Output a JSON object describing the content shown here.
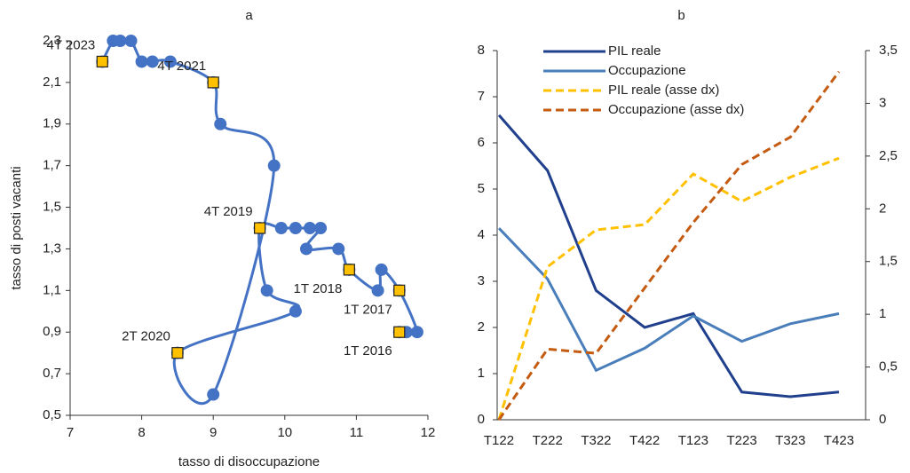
{
  "chart_data": [
    {
      "type": "scatter",
      "title": "a",
      "xlabel": "tasso di disoccupazione",
      "ylabel": "tasso di posti vacanti",
      "color": "#4472c4",
      "marker_color": "#ffc000",
      "connected": true,
      "x": [
        11.6,
        11.7,
        11.85,
        11.6,
        11.35,
        11.3,
        10.9,
        10.75,
        10.3,
        10.5,
        10.35,
        10.15,
        9.95,
        9.65,
        9.75,
        10.15,
        8.5,
        9.0,
        9.85,
        9.1,
        9.0,
        8.4,
        8.15,
        8.0,
        7.85,
        7.7,
        7.6,
        7.45
      ],
      "y": [
        0.9,
        0.9,
        0.9,
        1.1,
        1.2,
        1.1,
        1.2,
        1.3,
        1.3,
        1.4,
        1.4,
        1.4,
        1.4,
        1.4,
        1.1,
        1.0,
        0.8,
        0.6,
        1.7,
        1.9,
        2.1,
        2.2,
        2.2,
        2.2,
        2.3,
        2.3,
        2.3,
        2.2
      ],
      "annotations": [
        {
          "text": "1T 2016",
          "x": 11.6,
          "y": 0.9
        },
        {
          "text": "1T 2017",
          "x": 11.6,
          "y": 1.1
        },
        {
          "text": "1T 2018",
          "x": 10.9,
          "y": 1.2
        },
        {
          "text": "4T 2019",
          "x": 9.65,
          "y": 1.4
        },
        {
          "text": "2T 2020",
          "x": 8.5,
          "y": 0.8
        },
        {
          "text": "4T 2021",
          "x": 9.0,
          "y": 2.1
        },
        {
          "text": "4T 2023",
          "x": 7.45,
          "y": 2.2
        }
      ],
      "xlim": [
        7,
        12
      ],
      "xticks": [
        7,
        8,
        9,
        10,
        11,
        12
      ],
      "ylim": [
        0.5,
        2.3
      ],
      "yticks": [
        {
          "value": 0.5,
          "label": "0,5"
        },
        {
          "value": 0.7,
          "label": "0,7"
        },
        {
          "value": 0.9,
          "label": "0,9"
        },
        {
          "value": 1.1,
          "label": "1,1"
        },
        {
          "value": 1.3,
          "label": "1,3"
        },
        {
          "value": 1.5,
          "label": "1,5"
        },
        {
          "value": 1.7,
          "label": "1,7"
        },
        {
          "value": 1.9,
          "label": "1,9"
        },
        {
          "value": 2.1,
          "label": "2,1"
        },
        {
          "value": 2.3,
          "label": "2,3"
        }
      ]
    },
    {
      "type": "line",
      "title": "b",
      "legend": "upper left",
      "categories": [
        "T122",
        "T222",
        "T322",
        "T422",
        "T123",
        "T223",
        "T323",
        "T423"
      ],
      "series": [
        {
          "name": "PIL reale",
          "color": "#203f8c",
          "dashed": false,
          "values": [
            6.6,
            5.4,
            2.8,
            2.0,
            2.3,
            0.6,
            0.5,
            0.6
          ]
        },
        {
          "name": "Occupazione",
          "color": "#4a7ebb",
          "dashed": false,
          "values": [
            4.15,
            3.05,
            1.07,
            1.55,
            2.25,
            1.7,
            2.08,
            2.3
          ]
        },
        {
          "name": "PIL reale (asse dx)",
          "color": "#ffc000",
          "dashed": true,
          "axis": "y2",
          "values": [
            0.0,
            1.45,
            1.8,
            1.85,
            2.33,
            2.07,
            2.3,
            2.48
          ]
        },
        {
          "name": "Occupazione (asse dx)",
          "color": "#c55a11",
          "dashed": true,
          "axis": "y2",
          "values": [
            0.0,
            0.67,
            0.63,
            1.25,
            1.87,
            2.42,
            2.68,
            3.3
          ]
        }
      ],
      "ylim": [
        0,
        8
      ],
      "yticks": [
        0,
        1,
        2,
        3,
        4,
        5,
        6,
        7,
        8
      ],
      "y2lim": [
        0,
        3.5
      ],
      "y2ticks": [
        0,
        {
          "value": 0.5,
          "label": "0,5"
        },
        1,
        {
          "value": 1.5,
          "label": "1,5"
        },
        2,
        {
          "value": 2.5,
          "label": "2,5"
        },
        3,
        {
          "value": 3.5,
          "label": "3,5"
        }
      ]
    }
  ]
}
